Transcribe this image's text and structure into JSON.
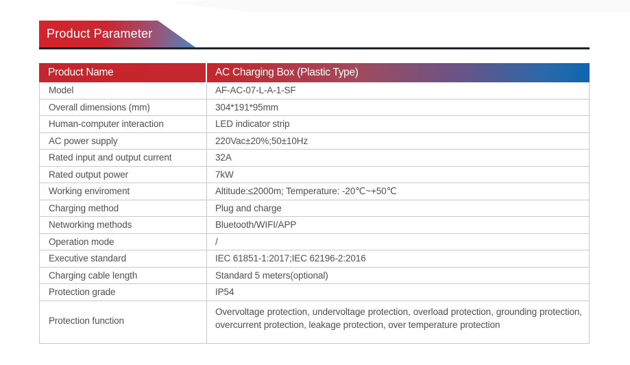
{
  "page": {
    "banner_title": "Product Parameter"
  },
  "table": {
    "header": {
      "col1": "Product Name",
      "col2": "AC Charging Box (Plastic Type)"
    },
    "rows": [
      {
        "label": "Model",
        "value": "AF-AC-07-L-A-1-SF"
      },
      {
        "label": "Overall dimensions (mm)",
        "value": "304*191*95mm"
      },
      {
        "label": "Human-computer interaction",
        "value": "LED indicator strip"
      },
      {
        "label": "AC power supply",
        "value": "220Vac±20%;50±10Hz"
      },
      {
        "label": "Rated input and output current",
        "value": "32A"
      },
      {
        "label": "Rated output power",
        "value": "7kW"
      },
      {
        "label": "Working enviroment",
        "value": "Altitude:≤2000m; Temperature: -20℃~+50℃"
      },
      {
        "label": "Charging method",
        "value": "Plug and charge"
      },
      {
        "label": "Networking methods",
        "value": "Bluetooth/WIFI/APP"
      },
      {
        "label": "Operation mode",
        "value": "/"
      },
      {
        "label": "Executive standard",
        "value": "IEC 61851-1:2017;IEC 62196-2:2016"
      },
      {
        "label": "Charging cable length",
        "value": "Standard 5 meters(optional)"
      },
      {
        "label": "Protection grade",
        "value": "IP54"
      },
      {
        "label": "Protection function",
        "value": "Overvoltage protection, undervoltage protection, overload protection, grounding protection, overcurrent protection, leakage protection, over temperature protection"
      }
    ],
    "colors": {
      "banner_gradient_start": "#d3242b",
      "banner_gradient_end": "#4e83bb",
      "banner_underline": "#1b2530",
      "header_gradient_start": "#c3262c",
      "header_gradient_end": "#0e66b2",
      "header_text": "#ffffff",
      "border": "#c8c8c8",
      "cell_text": "#4f4f4f"
    }
  }
}
